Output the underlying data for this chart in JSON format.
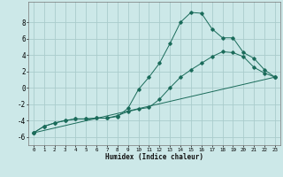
{
  "xlabel": "Humidex (Indice chaleur)",
  "ylabel": "",
  "background_color": "#cce8e8",
  "grid_color": "#aacccc",
  "line_color": "#1a6b5a",
  "xlim": [
    -0.5,
    23.5
  ],
  "ylim": [
    -7,
    10.5
  ],
  "xticks": [
    0,
    1,
    2,
    3,
    4,
    5,
    6,
    7,
    8,
    9,
    10,
    11,
    12,
    13,
    14,
    15,
    16,
    17,
    18,
    19,
    20,
    21,
    22,
    23
  ],
  "yticks": [
    -6,
    -4,
    -2,
    0,
    2,
    4,
    6,
    8
  ],
  "line1_x": [
    0,
    1,
    2,
    3,
    4,
    5,
    6,
    7,
    8,
    9,
    10,
    11,
    12,
    13,
    14,
    15,
    16,
    17,
    18,
    19,
    20,
    21,
    22,
    23
  ],
  "line1_y": [
    -5.5,
    -4.7,
    -4.3,
    -4.0,
    -3.8,
    -3.8,
    -3.7,
    -3.7,
    -3.5,
    -2.5,
    -0.2,
    1.3,
    3.0,
    5.4,
    8.0,
    9.2,
    9.1,
    7.2,
    6.1,
    6.1,
    4.3,
    3.6,
    2.2,
    1.3
  ],
  "line2_x": [
    0,
    1,
    2,
    3,
    4,
    5,
    6,
    7,
    8,
    9,
    10,
    11,
    12,
    13,
    14,
    15,
    16,
    17,
    18,
    19,
    20,
    21,
    22,
    23
  ],
  "line2_y": [
    -5.5,
    -4.7,
    -4.3,
    -4.0,
    -3.8,
    -3.8,
    -3.7,
    -3.7,
    -3.4,
    -2.9,
    -2.6,
    -2.4,
    -1.4,
    0.0,
    1.3,
    2.2,
    3.0,
    3.8,
    4.4,
    4.3,
    3.8,
    2.5,
    1.8,
    1.3
  ],
  "line3_x": [
    0,
    23
  ],
  "line3_y": [
    -5.5,
    1.3
  ]
}
